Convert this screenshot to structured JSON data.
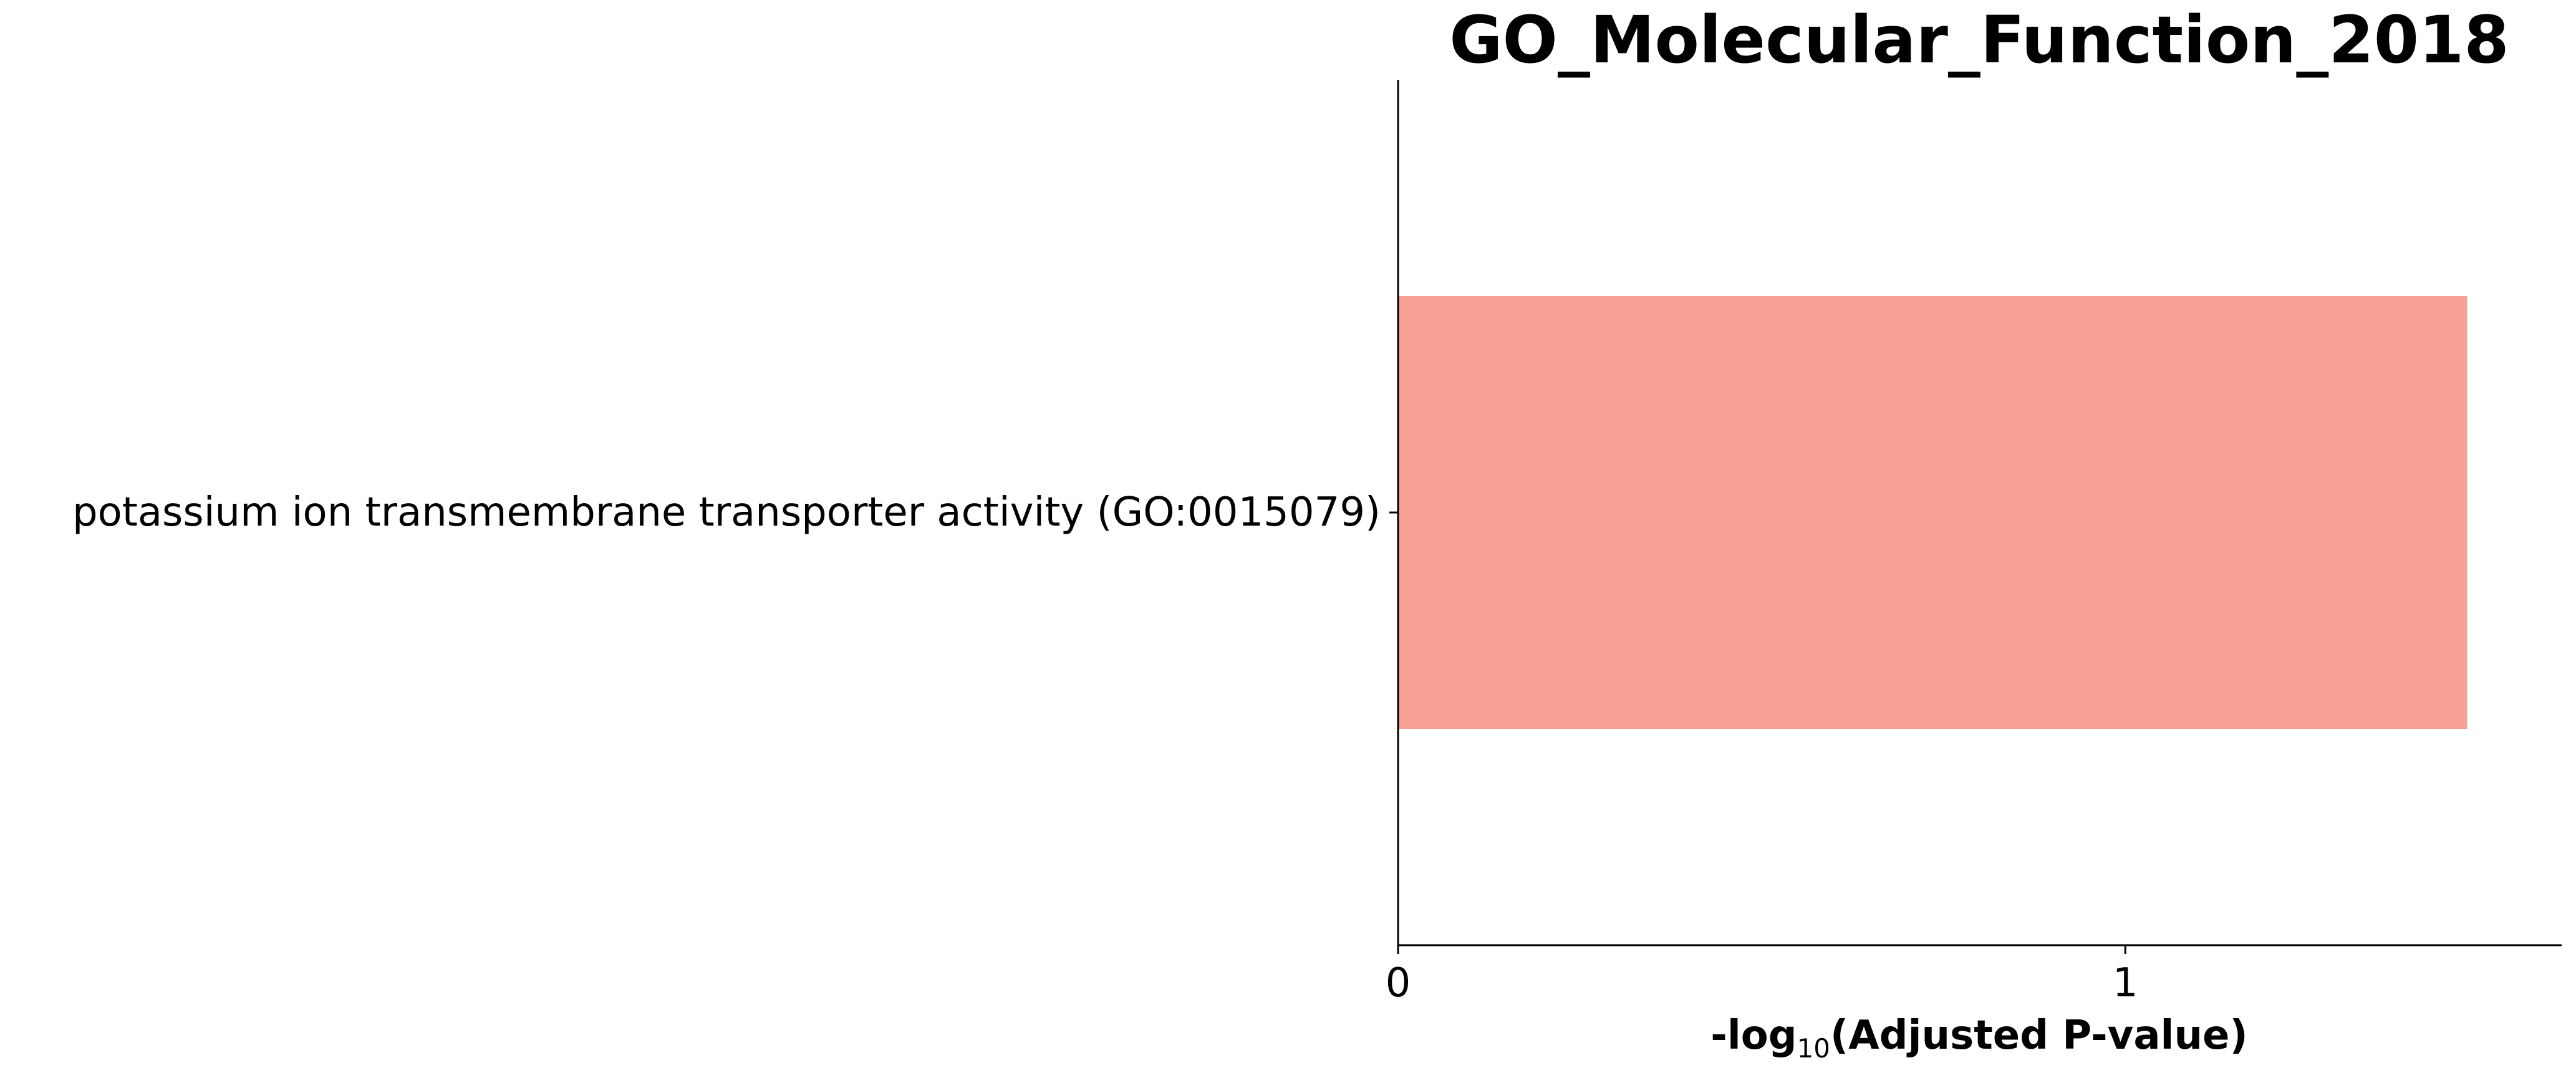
{
  "chart_data": {
    "type": "bar",
    "orientation": "horizontal",
    "title": "GO_Molecular_Function_2018",
    "categories": [
      "potassium ion transmembrane transporter activity (GO:0015079)"
    ],
    "values": [
      1.47
    ],
    "xlabel_prefix": "-log",
    "xlabel_subscript": "10",
    "xlabel_suffix": "(Adjusted P-value)",
    "ylabel": "",
    "xlim": [
      0,
      1.6
    ],
    "xticks": [
      "0",
      "1"
    ],
    "xtick_values": [
      0,
      1
    ],
    "bar_color": "#f9a195",
    "grid": false,
    "legend": "none"
  }
}
